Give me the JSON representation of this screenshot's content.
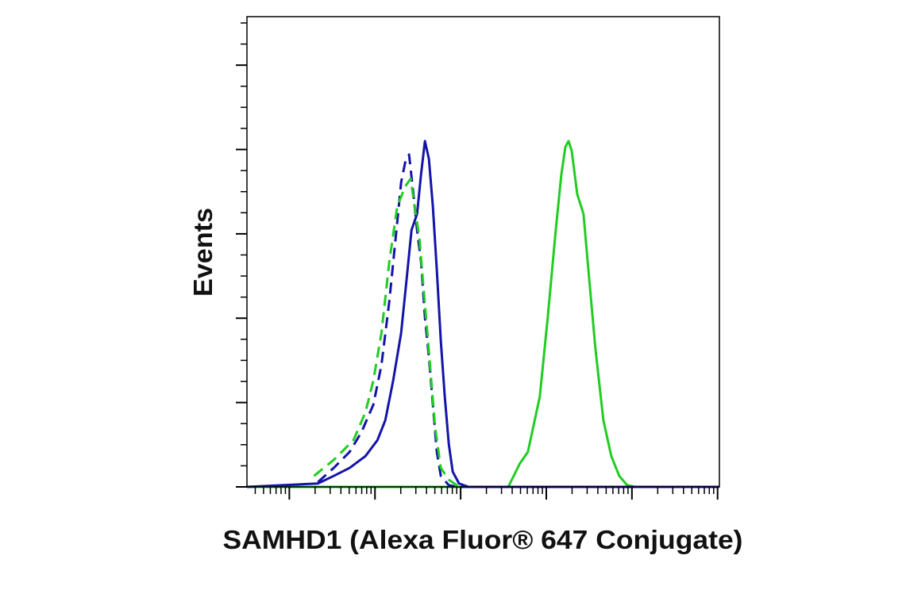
{
  "chart_data": {
    "type": "line",
    "xlabel": "SAMHD1 (Alexa Fluor® 647 Conjugate)",
    "ylabel": "Events",
    "xscale": "log",
    "xlim": [
      3.2,
      1050000
    ],
    "xticks": [
      10,
      100,
      1000,
      10000,
      100000,
      1000000
    ],
    "xminorticks": [
      4,
      5,
      6,
      7,
      8,
      9,
      20,
      30,
      40,
      50,
      60,
      70,
      80,
      90,
      200,
      300,
      400,
      500,
      600,
      700,
      800,
      900,
      2000,
      3000,
      4000,
      5000,
      6000,
      7000,
      8000,
      9000,
      20000,
      30000,
      40000,
      50000,
      60000,
      70000,
      80000,
      90000,
      200000,
      300000,
      400000,
      500000,
      600000,
      700000,
      800000,
      900000
    ],
    "ylim": [
      0,
      111.5
    ],
    "yticks": [
      0,
      20,
      40,
      60,
      80,
      100
    ],
    "yminorticks": [
      5,
      10,
      15,
      25,
      30,
      35,
      45,
      50,
      55,
      65,
      70,
      75,
      85,
      90,
      95,
      105,
      110
    ],
    "series": [
      {
        "color": "#22cc22",
        "dashed": false,
        "x": [
          3.2,
          3600,
          4900,
          6100,
          8400,
          10400,
          12900,
          15000,
          16700,
          18200,
          19800,
          23000,
          27200,
          31600,
          37500,
          46400,
          57400,
          71100,
          87900,
          109000,
          1040000
        ],
        "values": [
          0,
          0,
          5.5,
          8.3,
          21.4,
          40.2,
          60.9,
          74.1,
          80.6,
          82,
          79.7,
          69.4,
          64.7,
          49.6,
          32.7,
          15.8,
          7.3,
          2.6,
          0.4,
          0,
          0
        ]
      },
      {
        "color": "#1414a8",
        "dashed": false,
        "x": [
          3.2,
          21.5,
          33,
          50.6,
          77.4,
          107,
          132,
          163,
          202,
          235,
          267,
          310,
          345,
          383,
          426,
          474,
          527,
          587,
          653,
          727,
          808,
          958,
          1240,
          1040000
        ],
        "values": [
          0,
          0.8,
          2.6,
          4.5,
          7.3,
          11.1,
          15.8,
          25.2,
          36.5,
          49.6,
          60.9,
          64.7,
          74.1,
          82,
          77.8,
          66.5,
          51.5,
          34.6,
          21.4,
          10.2,
          3.6,
          0.8,
          0,
          0
        ]
      },
      {
        "color": "#1414a8",
        "dashed": true,
        "x": [
          21.5,
          33,
          50.6,
          69.6,
          95.7,
          119,
          147,
          182,
          202,
          225,
          250,
          278,
          310,
          345,
          383,
          426,
          474,
          527,
          587,
          727,
          899,
          1040000
        ],
        "values": [
          1.1,
          4.5,
          8.3,
          13,
          19.5,
          28.9,
          44,
          62.8,
          72.2,
          76.9,
          78.8,
          70.3,
          60.9,
          53.4,
          40.2,
          30.8,
          19.5,
          8.3,
          2.6,
          0.4,
          0,
          0
        ]
      },
      {
        "color": "#22cc22",
        "dashed": true,
        "x": [
          19.4,
          33,
          56.2,
          77.4,
          95.7,
          119,
          147,
          182,
          225,
          261,
          290,
          330,
          367,
          409,
          454,
          505,
          587,
          727,
          899,
          1110
        ],
        "values": [
          2.6,
          6.4,
          11.1,
          17.7,
          25.2,
          36.5,
          53.4,
          66.5,
          71.2,
          73.1,
          66.5,
          59,
          47.7,
          36.5,
          25.2,
          13.9,
          4.5,
          1.7,
          0.4,
          0
        ]
      }
    ]
  }
}
